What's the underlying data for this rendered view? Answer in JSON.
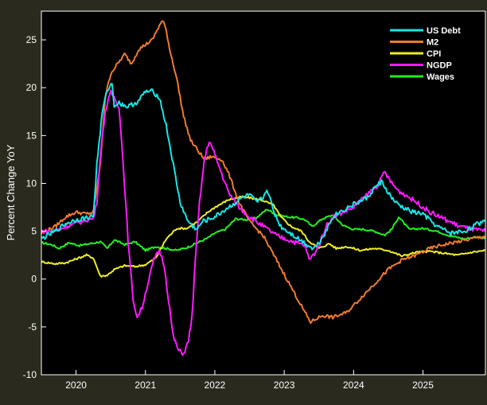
{
  "chart_data": {
    "type": "line",
    "title": "",
    "xlabel": "",
    "ylabel": "Percent Change YoY",
    "xlim": [
      2019.5,
      2025.9
    ],
    "ylim": [
      -10,
      28
    ],
    "xticks": [
      2020,
      2021,
      2022,
      2023,
      2024,
      2025
    ],
    "yticks": [
      -10,
      -5,
      0,
      5,
      10,
      15,
      20,
      25
    ],
    "legend_position": "top-right",
    "background": "#000000",
    "series": [
      {
        "name": "US Debt",
        "color": "#19e5e5",
        "x": [
          2019.5,
          2019.7,
          2019.85,
          2020.0,
          2020.15,
          2020.25,
          2020.3,
          2020.38,
          2020.45,
          2020.52,
          2020.55,
          2020.62,
          2020.75,
          2020.9,
          2021.0,
          2021.1,
          2021.2,
          2021.3,
          2021.4,
          2021.5,
          2021.6,
          2021.68,
          2021.75,
          2021.82,
          2021.9,
          2022.0,
          2022.2,
          2022.4,
          2022.5,
          2022.6,
          2022.7,
          2022.75,
          2022.85,
          2022.95,
          2023.05,
          2023.15,
          2023.25,
          2023.35,
          2023.42,
          2023.5,
          2023.6,
          2023.7,
          2023.8,
          2024.0,
          2024.2,
          2024.3,
          2024.4,
          2024.5,
          2024.6,
          2024.7,
          2024.85,
          2025.0,
          2025.2,
          2025.4,
          2025.6,
          2025.75,
          2025.9
        ],
        "values": [
          4.2,
          5.0,
          5.8,
          6.2,
          6.4,
          6.6,
          12.0,
          17.5,
          19.8,
          20.4,
          18.2,
          18.4,
          18.0,
          18.6,
          19.6,
          19.6,
          19.0,
          16.0,
          12.0,
          8.0,
          6.2,
          5.5,
          5.2,
          6.0,
          6.2,
          6.5,
          7.5,
          8.5,
          8.8,
          8.0,
          8.5,
          9.5,
          7.0,
          5.5,
          5.0,
          4.5,
          4.0,
          3.5,
          3.2,
          3.8,
          5.0,
          6.5,
          7.0,
          7.8,
          8.5,
          9.5,
          10.2,
          9.0,
          8.0,
          7.5,
          7.0,
          6.8,
          5.5,
          4.8,
          5.0,
          5.6,
          6.2
        ]
      },
      {
        "name": "M2",
        "color": "#f07a2f",
        "x": [
          2019.5,
          2019.7,
          2019.85,
          2020.0,
          2020.15,
          2020.25,
          2020.35,
          2020.42,
          2020.5,
          2020.6,
          2020.7,
          2020.8,
          2020.9,
          2021.0,
          2021.1,
          2021.2,
          2021.25,
          2021.3,
          2021.35,
          2021.45,
          2021.55,
          2021.65,
          2021.75,
          2021.85,
          2021.95,
          2022.1,
          2022.2,
          2022.35,
          2022.5,
          2022.7,
          2022.85,
          2023.0,
          2023.15,
          2023.3,
          2023.38,
          2023.45,
          2023.55,
          2023.7,
          2023.9,
          2024.1,
          2024.3,
          2024.5,
          2024.7,
          2024.9,
          2025.1,
          2025.3,
          2025.5,
          2025.7,
          2025.9
        ],
        "values": [
          4.8,
          5.5,
          6.5,
          7.0,
          6.8,
          7.0,
          12.0,
          19.0,
          21.5,
          22.5,
          23.5,
          22.5,
          24.0,
          24.5,
          25.0,
          26.5,
          27.0,
          26.0,
          24.0,
          21.0,
          17.0,
          14.5,
          13.5,
          12.5,
          12.8,
          12.5,
          11.0,
          8.0,
          6.0,
          4.5,
          2.5,
          0.5,
          -1.5,
          -3.5,
          -4.5,
          -4.2,
          -3.8,
          -4.0,
          -3.5,
          -2.0,
          -0.5,
          1.0,
          2.0,
          2.5,
          3.2,
          3.6,
          3.9,
          4.2,
          4.5
        ]
      },
      {
        "name": "CPI",
        "color": "#eeee22",
        "x": [
          2019.5,
          2019.7,
          2019.85,
          2020.0,
          2020.15,
          2020.25,
          2020.35,
          2020.45,
          2020.55,
          2020.7,
          2020.85,
          2021.0,
          2021.15,
          2021.3,
          2021.45,
          2021.6,
          2021.75,
          2021.9,
          2022.0,
          2022.2,
          2022.4,
          2022.5,
          2022.7,
          2022.85,
          2022.95,
          2023.1,
          2023.25,
          2023.35,
          2023.5,
          2023.65,
          2023.75,
          2023.9,
          2024.1,
          2024.3,
          2024.5,
          2024.7,
          2024.9,
          2025.1,
          2025.3,
          2025.5,
          2025.7,
          2025.9
        ],
        "values": [
          1.8,
          1.6,
          1.7,
          2.1,
          2.5,
          2.2,
          0.3,
          0.4,
          1.0,
          1.4,
          1.3,
          1.5,
          2.2,
          4.2,
          5.3,
          5.3,
          6.0,
          7.0,
          7.5,
          8.3,
          8.6,
          8.5,
          8.2,
          7.7,
          6.5,
          5.5,
          5.0,
          4.0,
          3.2,
          3.7,
          3.2,
          3.4,
          3.0,
          3.2,
          3.0,
          2.4,
          2.8,
          2.9,
          2.7,
          2.5,
          2.8,
          3.0
        ]
      },
      {
        "name": "NGDP",
        "color": "#ff19ff",
        "x": [
          2019.5,
          2019.7,
          2019.85,
          2020.0,
          2020.15,
          2020.25,
          2020.3,
          2020.35,
          2020.42,
          2020.5,
          2020.55,
          2020.62,
          2020.68,
          2020.75,
          2020.82,
          2020.88,
          2020.95,
          2021.0,
          2021.05,
          2021.12,
          2021.2,
          2021.27,
          2021.33,
          2021.4,
          2021.48,
          2021.55,
          2021.62,
          2021.67,
          2021.72,
          2021.78,
          2021.85,
          2021.92,
          2022.0,
          2022.1,
          2022.2,
          2022.35,
          2022.5,
          2022.7,
          2022.9,
          2023.1,
          2023.3,
          2023.36,
          2023.42,
          2023.5,
          2023.6,
          2023.7,
          2023.85,
          2024.0,
          2024.15,
          2024.25,
          2024.35,
          2024.45,
          2024.55,
          2024.65,
          2024.75,
          2024.85,
          2024.95,
          2025.1,
          2025.3,
          2025.5,
          2025.7,
          2025.9
        ],
        "values": [
          5.0,
          5.0,
          5.5,
          5.8,
          6.2,
          6.3,
          8.0,
          13.0,
          17.5,
          19.5,
          19.0,
          18.0,
          12.0,
          4.0,
          -2.0,
          -4.0,
          -3.0,
          -1.5,
          0.0,
          2.0,
          3.0,
          1.5,
          -2.0,
          -6.0,
          -7.5,
          -7.8,
          -6.5,
          -4.0,
          2.0,
          8.0,
          12.5,
          14.5,
          13.0,
          11.0,
          9.0,
          7.5,
          6.5,
          5.5,
          4.5,
          4.0,
          3.5,
          2.0,
          2.5,
          3.5,
          5.5,
          6.5,
          7.0,
          7.5,
          8.5,
          9.2,
          9.8,
          11.2,
          10.0,
          9.2,
          8.8,
          8.3,
          7.8,
          7.0,
          6.3,
          5.6,
          5.2,
          5.0
        ]
      },
      {
        "name": "Wages",
        "color": "#22ee22",
        "x": [
          2019.5,
          2019.65,
          2019.75,
          2019.9,
          2020.05,
          2020.2,
          2020.35,
          2020.45,
          2020.55,
          2020.7,
          2020.85,
          2021.0,
          2021.15,
          2021.3,
          2021.45,
          2021.6,
          2021.75,
          2021.9,
          2022.0,
          2022.15,
          2022.3,
          2022.45,
          2022.6,
          2022.75,
          2022.9,
          2023.05,
          2023.2,
          2023.3,
          2023.4,
          2023.55,
          2023.7,
          2023.85,
          2024.0,
          2024.15,
          2024.3,
          2024.45,
          2024.55,
          2024.65,
          2024.8,
          2025.0,
          2025.2,
          2025.4,
          2025.6,
          2025.75,
          2025.9
        ],
        "values": [
          3.8,
          3.6,
          3.2,
          3.8,
          3.5,
          3.7,
          3.9,
          3.2,
          4.1,
          3.6,
          3.9,
          3.0,
          3.4,
          3.2,
          3.0,
          3.3,
          3.8,
          4.3,
          4.8,
          5.2,
          6.3,
          6.2,
          6.4,
          7.3,
          6.7,
          6.5,
          6.4,
          6.2,
          5.5,
          6.3,
          6.7,
          5.6,
          5.2,
          5.2,
          5.0,
          4.6,
          5.2,
          6.5,
          5.2,
          5.3,
          5.0,
          4.5,
          4.2,
          4.4,
          4.3
        ]
      }
    ]
  }
}
